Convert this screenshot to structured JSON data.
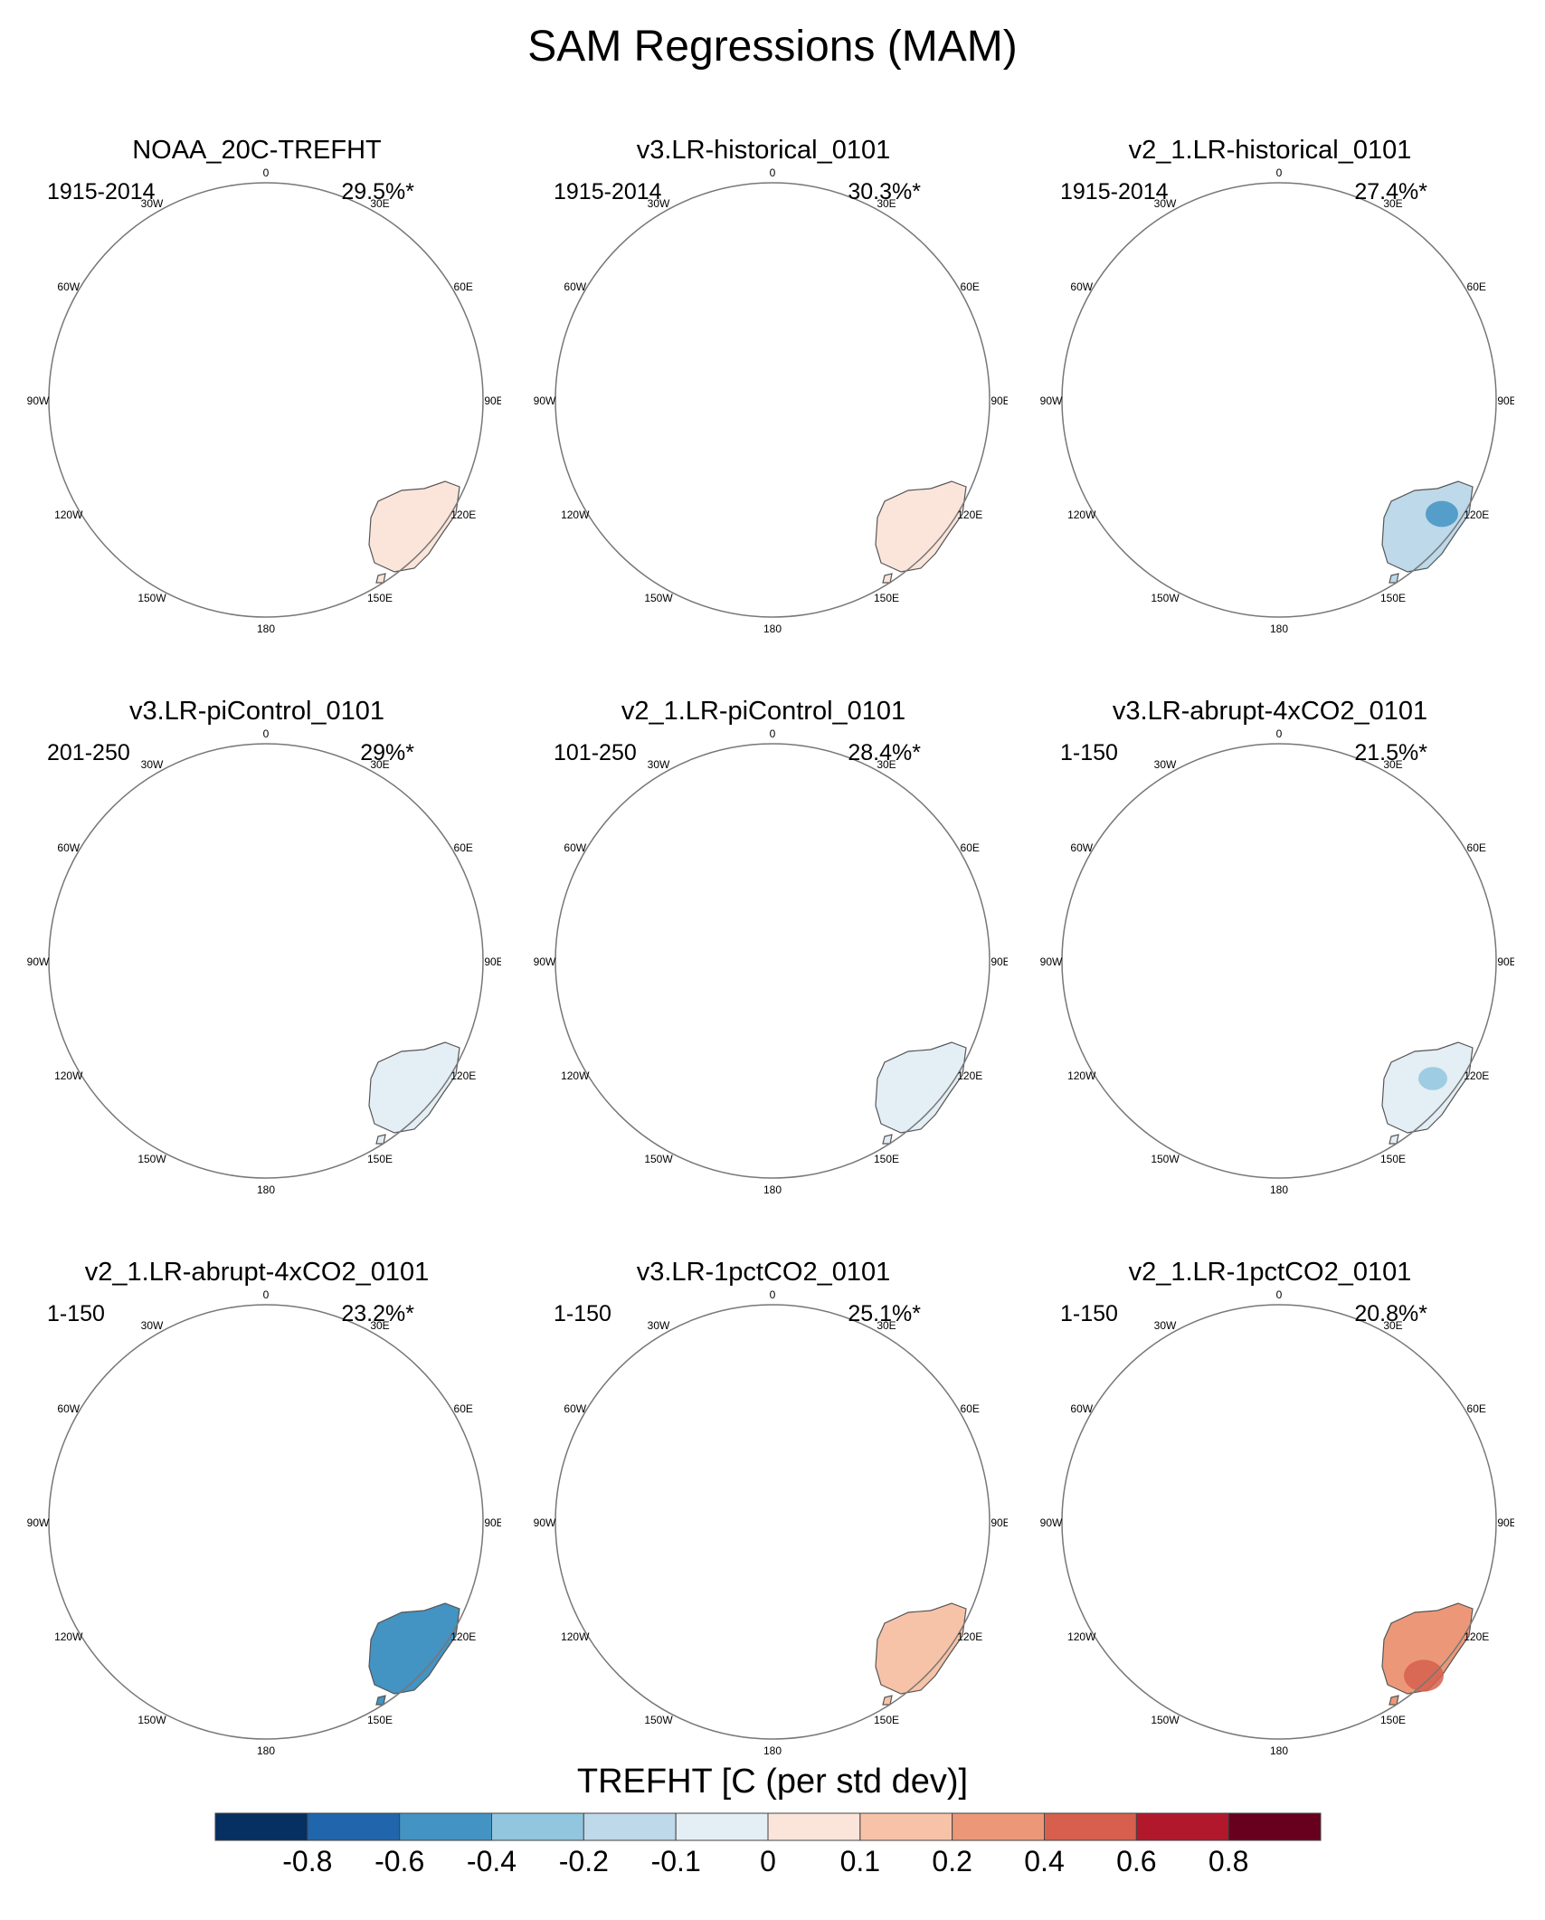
{
  "title": "SAM Regressions (MAM)",
  "lon_labels": [
    "0",
    "30E",
    "60E",
    "90E",
    "120E",
    "150E",
    "180",
    "150W",
    "120W",
    "90W",
    "60W",
    "30W"
  ],
  "panels": [
    {
      "title": "NOAA_20C-TREFHT",
      "period": "1915-2014",
      "percent": "29.5%*"
    },
    {
      "title": "v3.LR-historical_0101",
      "period": "1915-2014",
      "percent": "30.3%*"
    },
    {
      "title": "v2_1.LR-historical_0101",
      "period": "1915-2014",
      "percent": "27.4%*"
    },
    {
      "title": "v3.LR-piControl_0101",
      "period": "201-250",
      "percent": "29%*"
    },
    {
      "title": "v2_1.LR-piControl_0101",
      "period": "101-250",
      "percent": "28.4%*"
    },
    {
      "title": "v3.LR-abrupt-4xCO2_0101",
      "period": "1-150",
      "percent": "21.5%*"
    },
    {
      "title": "v2_1.LR-abrupt-4xCO2_0101",
      "period": "1-150",
      "percent": "23.2%*"
    },
    {
      "title": "v3.LR-1pctCO2_0101",
      "period": "1-150",
      "percent": "25.1%*"
    },
    {
      "title": "v2_1.LR-1pctCO2_0101",
      "period": "1-150",
      "percent": "20.8%*"
    }
  ],
  "colorbar": {
    "title": "TREFHT [C (per std dev)]",
    "tick_labels": [
      "-0.8",
      "-0.6",
      "-0.4",
      "-0.2",
      "-0.1",
      "0",
      "0.1",
      "0.2",
      "0.4",
      "0.6",
      "0.8"
    ],
    "colors": [
      "#053061",
      "#2166ac",
      "#4393c3",
      "#92c5de",
      "#bdd9ea",
      "#e4eef5",
      "#fbe5da",
      "#f7c3a8",
      "#ec9878",
      "#d6604d",
      "#b2182b",
      "#67001f"
    ]
  }
}
